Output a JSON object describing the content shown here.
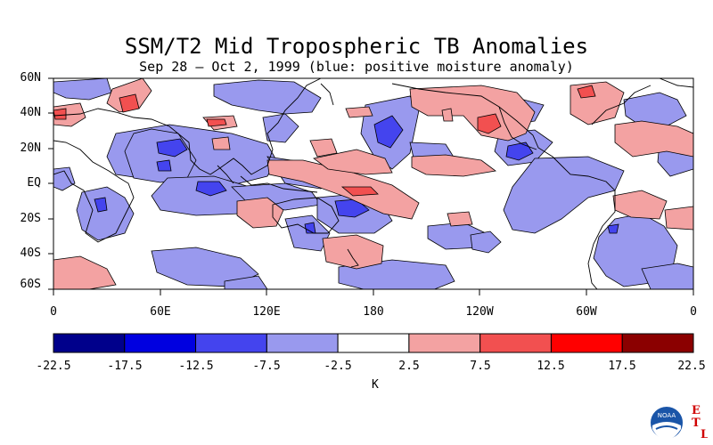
{
  "title": "SSM/T2 Mid Tropospheric TB Anomalies",
  "subtitle": "Sep 28 – Oct 2, 1999 (blue: positive moisture anomaly)",
  "lat_labels": [
    "60N",
    "40N",
    "20N",
    "EQ",
    "20S",
    "40S",
    "60S"
  ],
  "lon_labels": [
    "0",
    "60E",
    "120E",
    "180",
    "120W",
    "60W",
    "0"
  ],
  "colorbar": {
    "unit": "K",
    "ticks": [
      "-22.5",
      "-17.5",
      "-12.5",
      "-7.5",
      "-2.5",
      "2.5",
      "7.5",
      "12.5",
      "17.5",
      "22.5"
    ],
    "colors": [
      "#00008b",
      "#0000e0",
      "#4444ee",
      "#9999ee",
      "#ffffff",
      "#f3a2a2",
      "#f25050",
      "#ff0000",
      "#8b0000"
    ]
  },
  "logo": {
    "agency": "NOAA",
    "letters": [
      "E",
      "T",
      "L"
    ],
    "letter_color": "#d00000"
  }
}
